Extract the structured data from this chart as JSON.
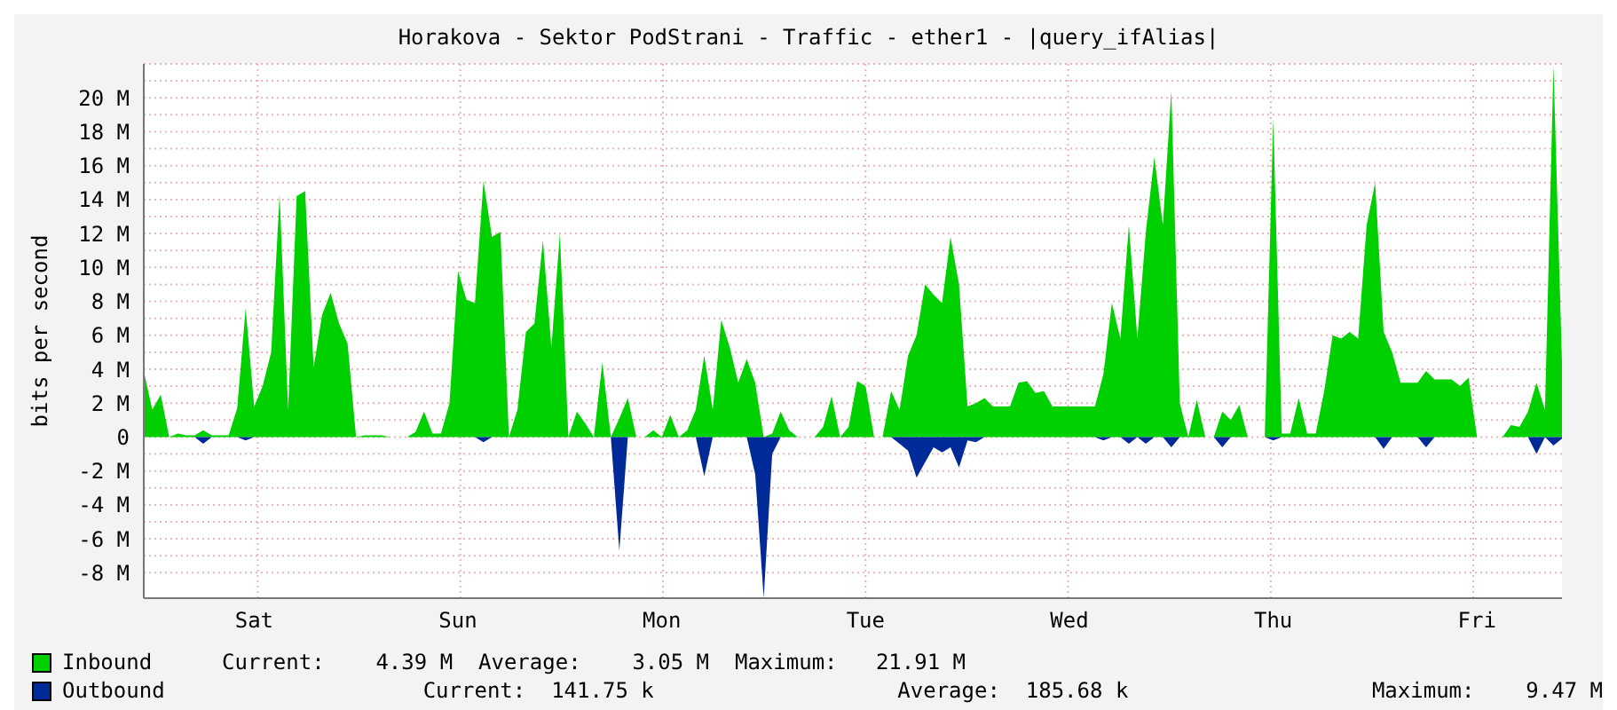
{
  "chart_data": {
    "type": "area",
    "title": "Horakova - Sektor PodStrani - Traffic - ether1 - |query_ifAlias|",
    "ylabel": "bits per second",
    "categories": [
      null,
      null,
      null,
      null,
      null,
      null,
      null,
      null,
      null,
      null,
      null,
      null,
      null,
      "Sat",
      null,
      null,
      null,
      null,
      null,
      null,
      null,
      null,
      null,
      null,
      null,
      null,
      null,
      null,
      null,
      null,
      null,
      null,
      null,
      null,
      null,
      null,
      null,
      "Sun",
      null,
      null,
      null,
      null,
      null,
      null,
      null,
      null,
      null,
      null,
      null,
      null,
      null,
      null,
      null,
      null,
      null,
      null,
      null,
      null,
      null,
      null,
      null,
      "Mon",
      null,
      null,
      null,
      null,
      null,
      null,
      null,
      null,
      null,
      null,
      null,
      null,
      null,
      null,
      null,
      null,
      null,
      null,
      null,
      null,
      null,
      null,
      null,
      "Tue",
      null,
      null,
      null,
      null,
      null,
      null,
      null,
      null,
      null,
      null,
      null,
      null,
      null,
      null,
      null,
      null,
      null,
      null,
      null,
      null,
      null,
      null,
      null,
      "Wed",
      null,
      null,
      null,
      null,
      null,
      null,
      null,
      null,
      null,
      null,
      null,
      null,
      null,
      null,
      null,
      null,
      null,
      null,
      null,
      null,
      null,
      null,
      null,
      "Thu",
      null,
      null,
      null,
      null,
      null,
      null,
      null,
      null,
      null,
      null,
      null,
      null,
      null,
      null,
      null,
      null,
      null,
      null,
      null,
      null,
      null,
      null,
      null,
      "Fri",
      null,
      null,
      null,
      null,
      null,
      null,
      null,
      null,
      null,
      null
    ],
    "ylim": [
      -9.5,
      22
    ],
    "yticks": [
      {
        "value": -8,
        "label": "-8 M"
      },
      {
        "value": -7,
        "label": null
      },
      {
        "value": -6,
        "label": "-6 M"
      },
      {
        "value": -5,
        "label": null
      },
      {
        "value": -4,
        "label": "-4 M"
      },
      {
        "value": -3,
        "label": null
      },
      {
        "value": -2,
        "label": "-2 M"
      },
      {
        "value": -1,
        "label": null
      },
      0,
      {
        "value": 1,
        "label": null
      },
      {
        "value": 2,
        "label": "2 M"
      },
      {
        "value": 3,
        "label": null
      },
      {
        "value": 4,
        "label": "4 M"
      },
      {
        "value": 5,
        "label": null
      },
      {
        "value": 6,
        "label": "6 M"
      },
      {
        "value": 7,
        "label": null
      },
      {
        "value": 8,
        "label": "8 M"
      },
      {
        "value": 9,
        "label": null
      },
      {
        "value": 10,
        "label": "10 M"
      },
      {
        "value": 11,
        "label": null
      },
      {
        "value": 12,
        "label": "12 M"
      },
      {
        "value": 13,
        "label": null
      },
      {
        "value": 14,
        "label": "14 M"
      },
      {
        "value": 15,
        "label": null
      },
      {
        "value": 16,
        "label": "16 M"
      },
      {
        "value": 17,
        "label": null
      },
      {
        "value": 18,
        "label": "18 M"
      },
      {
        "value": 19,
        "label": null
      },
      {
        "value": 20,
        "label": "20 M"
      },
      {
        "value": 21,
        "label": null
      }
    ],
    "grid": true,
    "legend": "bottom",
    "series": [
      {
        "name": "Inbound",
        "color": "#00cf00",
        "values": [
          3.9,
          1.6,
          2.5,
          0,
          0.2,
          0.1,
          0.1,
          0.4,
          0.1,
          0.1,
          0.1,
          1.7,
          7.6,
          1.8,
          3.0,
          5.0,
          14.3,
          1.6,
          14.2,
          14.5,
          4.1,
          7.2,
          8.5,
          6.7,
          5.5,
          0,
          0.1,
          0.1,
          0.1,
          0,
          0,
          0,
          0.3,
          1.5,
          0.2,
          0.2,
          2.0,
          9.8,
          8.1,
          7.9,
          15.1,
          11.8,
          12.1,
          0,
          1.6,
          6.2,
          6.7,
          11.6,
          5.3,
          12.0,
          0,
          1.5,
          0.8,
          0,
          4.4,
          0,
          1.1,
          2.3,
          0,
          0,
          0.4,
          0,
          1.3,
          0,
          0.4,
          1.6,
          4.8,
          1.6,
          6.9,
          5.3,
          3.2,
          4.6,
          3.2,
          0,
          0.2,
          1.5,
          0.4,
          0,
          0,
          0,
          0.6,
          2.4,
          0,
          0.6,
          3.3,
          3.0,
          0,
          0,
          2.7,
          1.6,
          4.8,
          6.0,
          9.0,
          8.4,
          7.9,
          11.8,
          9.0,
          1.8,
          2.0,
          2.3,
          1.8,
          1.8,
          1.8,
          3.2,
          3.3,
          2.6,
          2.7,
          1.8,
          1.8,
          1.8,
          1.8,
          1.8,
          1.8,
          3.7,
          7.9,
          5.8,
          12.5,
          5.8,
          12.1,
          16.5,
          12.5,
          20.4,
          2.0,
          0,
          2.2,
          0,
          0,
          1.5,
          1.0,
          1.9,
          0,
          0,
          0,
          18.8,
          0.2,
          0.2,
          2.3,
          0.2,
          0.2,
          2.7,
          6.0,
          5.8,
          6.2,
          5.8,
          12.5,
          15.0,
          6.2,
          5.0,
          3.2,
          3.2,
          3.2,
          3.9,
          3.4,
          3.4,
          3.4,
          3.0,
          3.5,
          0,
          0,
          0,
          0,
          0.7,
          0.6,
          1.5,
          3.2,
          1.6,
          21.9,
          4.4
        ]
      },
      {
        "name": "Outbound",
        "color": "#002a97",
        "values": [
          0,
          0,
          0,
          0,
          0,
          0,
          0,
          -0.4,
          0,
          0,
          0,
          0,
          -0.2,
          0,
          0,
          0,
          0,
          0,
          0,
          0,
          0,
          0,
          0,
          0,
          0,
          0,
          0,
          0,
          0,
          0,
          0,
          0,
          0,
          0,
          0,
          0,
          0,
          0,
          0,
          0,
          -0.3,
          0,
          0,
          0,
          0,
          0,
          0,
          0,
          0,
          0,
          0,
          0,
          0,
          0,
          0,
          0,
          -6.7,
          0,
          0,
          0,
          0,
          0,
          0,
          0,
          0,
          0,
          -2.3,
          0,
          0,
          0,
          0,
          0,
          -2.2,
          -9.5,
          -1.0,
          0,
          0,
          0,
          0,
          0,
          0,
          0,
          0,
          0,
          0,
          0,
          0,
          0,
          0,
          -0.4,
          -0.8,
          -2.4,
          -1.5,
          -0.6,
          -0.9,
          -0.6,
          -1.8,
          -0.2,
          -0.3,
          0,
          0,
          0,
          0,
          0,
          0,
          0,
          0,
          0,
          0,
          0,
          0,
          0,
          0,
          -0.2,
          0,
          0,
          -0.4,
          0,
          -0.4,
          0,
          0,
          -0.6,
          0,
          0,
          0,
          0,
          0,
          -0.6,
          0,
          0,
          0,
          0,
          0,
          -0.2,
          0,
          0,
          0,
          0,
          0,
          0,
          0,
          0,
          0,
          0,
          0,
          0,
          -0.7,
          0,
          0,
          0,
          0,
          -0.6,
          0,
          0,
          0,
          0,
          0,
          0,
          0,
          0,
          0,
          0,
          0,
          0,
          -1.0,
          0,
          -0.5,
          -0.1
        ]
      }
    ],
    "annotations": [
      "Current:    4.39 M  Average:    3.05 M  Maximum:   21.91 M",
      "Current:  141.75 k                   Average:  185.68 k                   Maximum:    9.47 M"
    ]
  }
}
